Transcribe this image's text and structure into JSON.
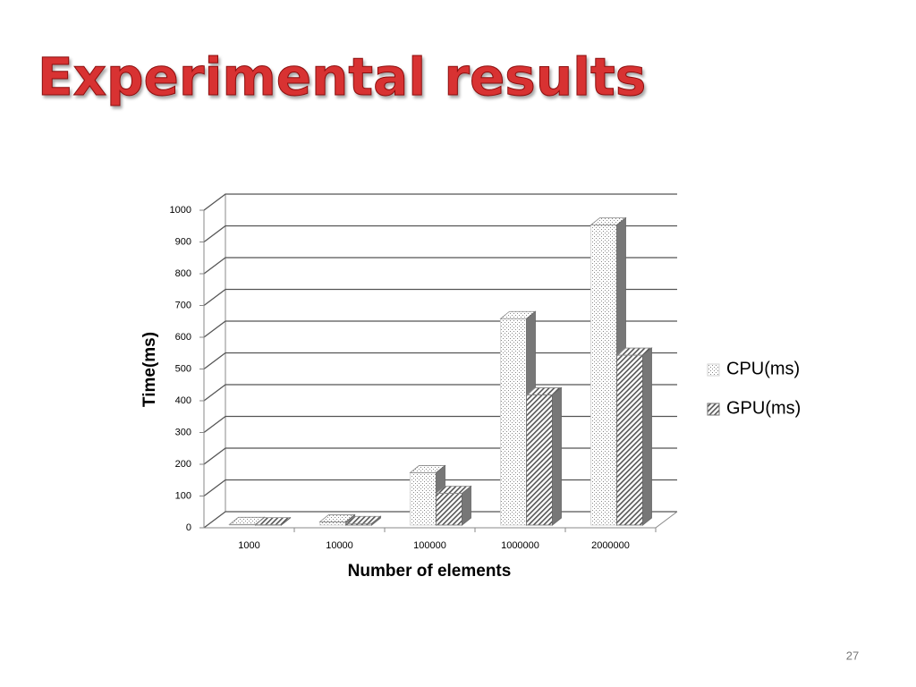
{
  "chart_data": {
    "type": "bar3d",
    "title": "Experimental results",
    "x_label": "Number of elements",
    "y_label": "Time(ms)",
    "categories": [
      "1000",
      "10000",
      "100000",
      "1000000",
      "2000000"
    ],
    "series": [
      {
        "name": "CPU(ms)",
        "color": "#d0d0d0",
        "values": [
          2,
          10,
          165,
          650,
          945
        ]
      },
      {
        "name": "GPU(ms)",
        "color": "#707070",
        "values": [
          1,
          5,
          100,
          410,
          535
        ]
      }
    ],
    "ylim": [
      0,
      1000
    ],
    "yticks": [
      0,
      100,
      200,
      300,
      400,
      500,
      600,
      700,
      800,
      900,
      1000
    ],
    "grid": true,
    "legend": "right"
  },
  "page_number": "27"
}
